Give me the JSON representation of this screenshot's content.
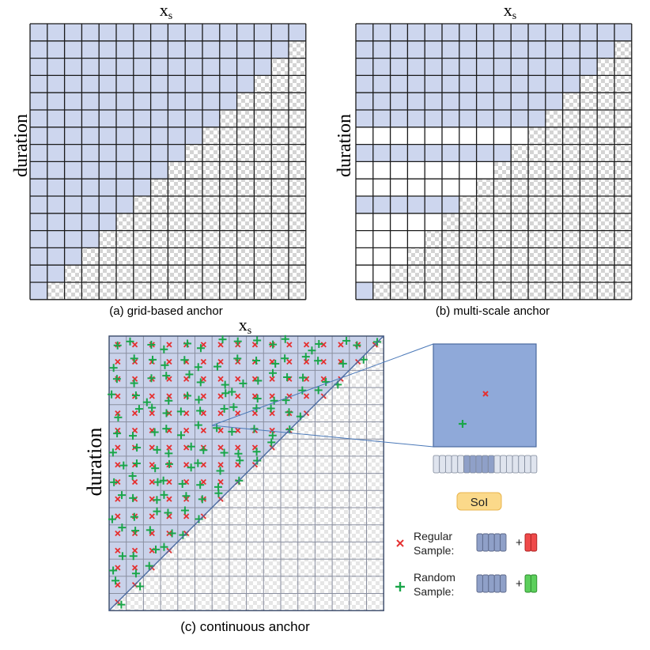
{
  "panel_a": {
    "axis_x": "x",
    "axis_x_sub": "s",
    "axis_y": "duration",
    "caption": "(a) grid-based anchor"
  },
  "panel_b": {
    "axis_x": "x",
    "axis_x_sub": "s",
    "axis_y": "duration",
    "caption": "(b) multi-scale anchor"
  },
  "panel_c": {
    "axis_x": "x",
    "axis_x_sub": "s",
    "axis_y": "duration",
    "caption": "(c) continuous anchor"
  },
  "legend": {
    "soi_label": "SoI",
    "regular_line1": "Regular",
    "regular_line2": "Sample:",
    "random_line1": "Random",
    "random_line2": "Sample:",
    "plus": "+"
  },
  "colors": {
    "anchor_fill": "#cdd6ee",
    "anchor_fill_c": "#c9d2ea",
    "zoom_fill": "#8fa9d9",
    "grid_line": "#1a1a1a",
    "checker": "#d4d4d4",
    "regular_marker": "#e53030",
    "random_marker": "#1aa64a",
    "soi_fill": "#fbd98a",
    "link_line": "#4a78b8"
  },
  "icons": {
    "regular": "red-x-icon",
    "random": "green-plus-icon"
  }
}
